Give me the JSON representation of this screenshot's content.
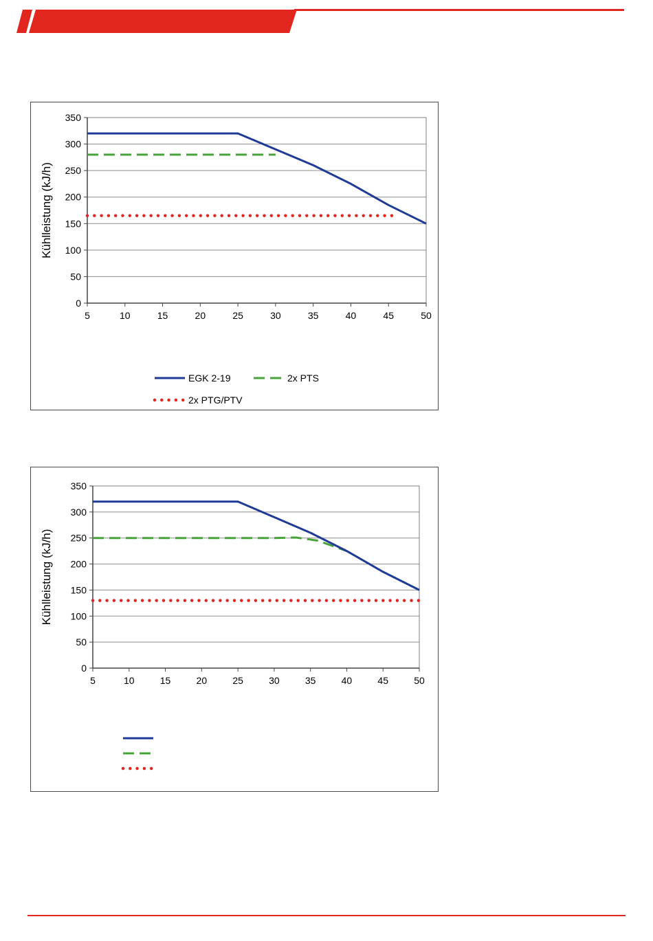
{
  "colors": {
    "brand": "#e0261e",
    "series_blue": "#1f3b96",
    "series_green": "#45a338",
    "series_red": "#e0261e"
  },
  "chart_data": [
    {
      "type": "line",
      "ylabel": "Kühlleistung (kJ/h)",
      "xlabel": "",
      "xlim": [
        5,
        50
      ],
      "ylim": [
        0,
        350
      ],
      "xticks": [
        5,
        10,
        15,
        20,
        25,
        30,
        35,
        40,
        45,
        50
      ],
      "yticks": [
        0,
        50,
        100,
        150,
        200,
        250,
        300,
        350
      ],
      "grid": true,
      "legend_position": "bottom",
      "series": [
        {
          "name": "EGK 2-19",
          "style": "solid",
          "color": "#1f3b96",
          "x": [
            5,
            25,
            30,
            35,
            40,
            45,
            50
          ],
          "y": [
            320,
            320,
            290,
            260,
            225,
            185,
            150
          ]
        },
        {
          "name": "2x PTS",
          "style": "dashed",
          "color": "#45a338",
          "x": [
            5,
            30
          ],
          "y": [
            280,
            280
          ]
        },
        {
          "name": "2x PTG/PTV",
          "style": "dotted",
          "color": "#e0261e",
          "x": [
            5,
            46
          ],
          "y": [
            165,
            165
          ]
        }
      ]
    },
    {
      "type": "line",
      "ylabel": "Kühlleistung (kJ/h)",
      "xlabel": "",
      "xlim": [
        5,
        50
      ],
      "ylim": [
        0,
        350
      ],
      "xticks": [
        5,
        10,
        15,
        20,
        25,
        30,
        35,
        40,
        45,
        50
      ],
      "yticks": [
        0,
        50,
        100,
        150,
        200,
        250,
        300,
        350
      ],
      "grid": true,
      "legend_position": "bottom-left",
      "series": [
        {
          "name": "",
          "style": "solid",
          "color": "#1f3b96",
          "x": [
            5,
            25,
            30,
            35,
            40,
            45,
            50
          ],
          "y": [
            320,
            320,
            290,
            260,
            225,
            185,
            150
          ]
        },
        {
          "name": "",
          "style": "dashed",
          "color": "#45a338",
          "x": [
            5,
            30,
            33,
            36,
            40
          ],
          "y": [
            250,
            250,
            251,
            245,
            225
          ]
        },
        {
          "name": "",
          "style": "dotted",
          "color": "#e0261e",
          "x": [
            5,
            50
          ],
          "y": [
            130,
            130
          ]
        }
      ]
    }
  ]
}
